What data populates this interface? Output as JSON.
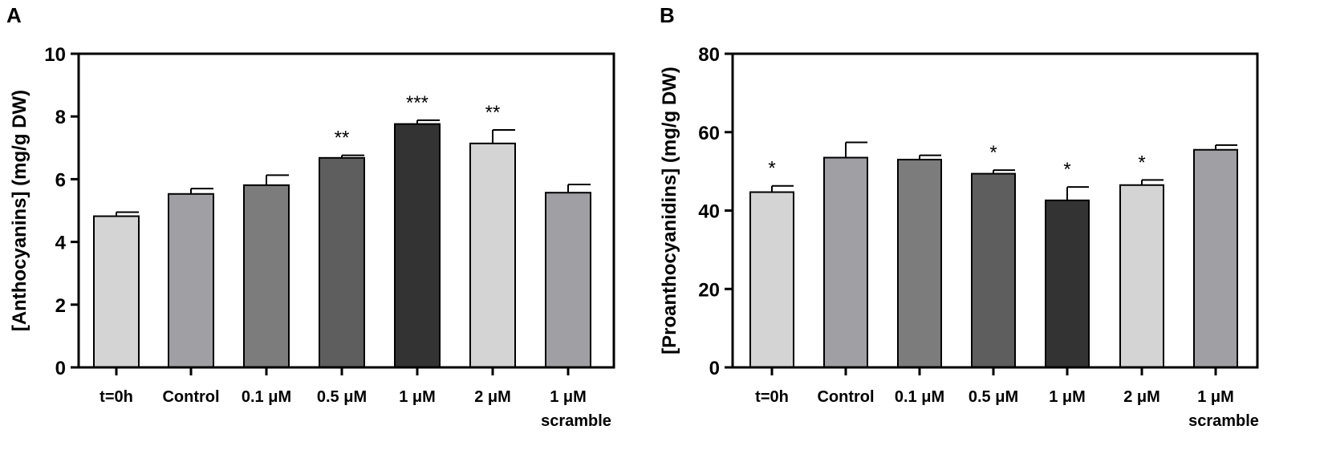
{
  "chart_data": [
    {
      "panel": "A",
      "type": "bar",
      "ylabel": "[Anthocyanins] (mg/g DW)",
      "xlabel": "",
      "ylim": [
        0,
        10
      ],
      "yticks": [
        0,
        2,
        4,
        6,
        8,
        10
      ],
      "categories": [
        {
          "line1": "t=0h",
          "line2": ""
        },
        {
          "line1": "Control",
          "line2": ""
        },
        {
          "line1": "0.1 μM",
          "line2": ""
        },
        {
          "line1": "0.5 μM",
          "line2": ""
        },
        {
          "line1": "1 μM",
          "line2": ""
        },
        {
          "line1": "2 μM",
          "line2": ""
        },
        {
          "line1": "1 μM",
          "line2": "scramble"
        }
      ],
      "values": [
        4.82,
        5.53,
        5.81,
        6.68,
        7.76,
        7.14,
        5.57
      ],
      "errors": [
        0.13,
        0.17,
        0.32,
        0.08,
        0.12,
        0.43,
        0.26
      ],
      "significance": [
        "",
        "",
        "",
        "**",
        "***",
        "**",
        ""
      ],
      "colors": [
        "#d4d4d4",
        "#a0a0a4",
        "#7c7c7c",
        "#5e5e5e",
        "#333333",
        "#d4d4d4",
        "#a0a0a4"
      ]
    },
    {
      "panel": "B",
      "type": "bar",
      "ylabel": "[Proanthocyanidins] (mg/g DW)",
      "xlabel": "",
      "ylim": [
        0,
        80
      ],
      "yticks": [
        0,
        20,
        40,
        60,
        80
      ],
      "categories": [
        {
          "line1": "t=0h",
          "line2": ""
        },
        {
          "line1": "Control",
          "line2": ""
        },
        {
          "line1": "0.1 μM",
          "line2": ""
        },
        {
          "line1": "0.5 μM",
          "line2": ""
        },
        {
          "line1": "1 μM",
          "line2": ""
        },
        {
          "line1": "2 μM",
          "line2": ""
        },
        {
          "line1": "1 μM",
          "line2": "scramble"
        }
      ],
      "values": [
        44.7,
        53.5,
        53.0,
        49.4,
        42.6,
        46.5,
        55.5
      ],
      "errors": [
        1.6,
        3.9,
        1.1,
        0.9,
        3.4,
        1.3,
        1.2
      ],
      "significance": [
        "*",
        "",
        "",
        "*",
        "*",
        "*",
        ""
      ],
      "colors": [
        "#d4d4d4",
        "#a0a0a4",
        "#7c7c7c",
        "#5e5e5e",
        "#333333",
        "#d4d4d4",
        "#a0a0a4"
      ]
    }
  ]
}
